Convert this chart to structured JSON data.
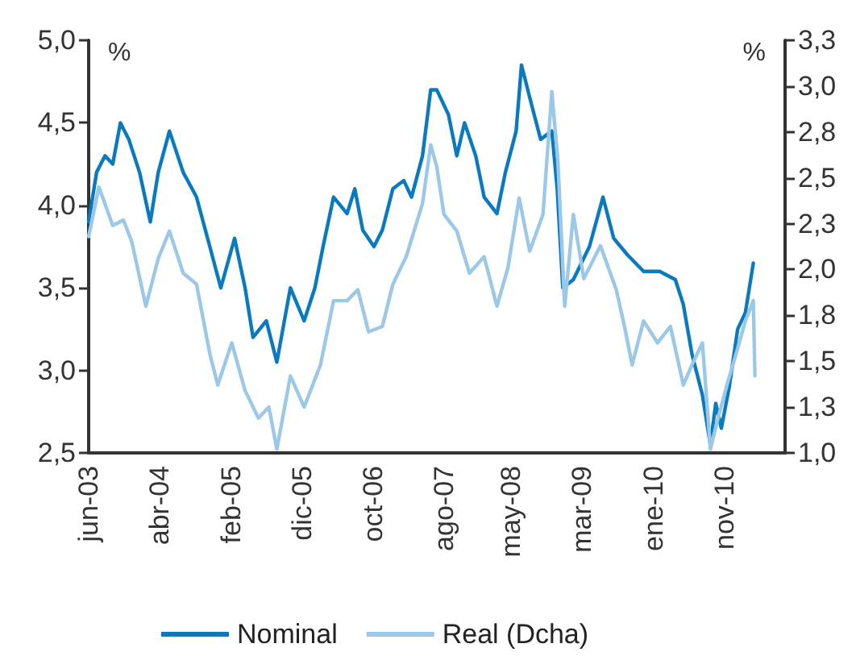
{
  "chart_data": {
    "type": "line",
    "ylabel": "%",
    "y2label": "%",
    "xlim": [
      "2003-06-01",
      "2011-08-01"
    ],
    "xticks": [
      {
        "value": "2003-06-01",
        "label": "jun-03"
      },
      {
        "value": "2004-04-01",
        "label": "abr-04"
      },
      {
        "value": "2005-02-01",
        "label": "feb-05"
      },
      {
        "value": "2005-12-01",
        "label": "dic-05"
      },
      {
        "value": "2006-10-01",
        "label": "oct-06"
      },
      {
        "value": "2007-08-01",
        "label": "ago-07"
      },
      {
        "value": "2008-05-15",
        "label": "may-08"
      },
      {
        "value": "2009-03-15",
        "label": "mar-09"
      },
      {
        "value": "2010-01-15",
        "label": "ene-10"
      },
      {
        "value": "2010-11-15",
        "label": "nov-10"
      }
    ],
    "ylim": [
      2.5,
      5.0
    ],
    "yticks": [
      {
        "value": 2.5,
        "label": "2,5"
      },
      {
        "value": 3.0,
        "label": "3,0"
      },
      {
        "value": 3.5,
        "label": "3,5"
      },
      {
        "value": 4.0,
        "label": "4,0"
      },
      {
        "value": 4.5,
        "label": "4,5"
      },
      {
        "value": 5.0,
        "label": "5,0"
      }
    ],
    "y2lim": [
      1.0,
      3.25
    ],
    "y2ticks": [
      {
        "value": 1.0,
        "label": "1,0"
      },
      {
        "value": 1.25,
        "label": "1,3"
      },
      {
        "value": 1.5,
        "label": "1,5"
      },
      {
        "value": 1.75,
        "label": "1,8"
      },
      {
        "value": 2.0,
        "label": "2,0"
      },
      {
        "value": 2.25,
        "label": "2,3"
      },
      {
        "value": 2.5,
        "label": "2,5"
      },
      {
        "value": 2.75,
        "label": "2,8"
      },
      {
        "value": 3.0,
        "label": "3,0"
      },
      {
        "value": 3.25,
        "label": "3,3"
      }
    ],
    "grid": false,
    "legend": "bottom",
    "marker": "none",
    "line_style": "solid",
    "series": [
      {
        "name": "Nominal",
        "color": "#0a7abf",
        "x": [
          "2003-06-01",
          "2003-07-05",
          "2003-08-10",
          "2003-09-12",
          "2003-10-15",
          "2003-11-20",
          "2004-01-05",
          "2004-02-20",
          "2004-03-25",
          "2004-05-12",
          "2004-07-10",
          "2004-09-05",
          "2004-11-01",
          "2004-12-18",
          "2005-02-15",
          "2005-04-01",
          "2005-05-05",
          "2005-07-01",
          "2005-08-15",
          "2005-10-12",
          "2005-12-10",
          "2006-01-25",
          "2006-03-01",
          "2006-04-15",
          "2006-06-12",
          "2006-07-15",
          "2006-08-18",
          "2006-10-05",
          "2006-11-10",
          "2006-12-25",
          "2007-02-10",
          "2007-03-15",
          "2007-05-01",
          "2007-06-05",
          "2007-07-01",
          "2007-08-20",
          "2007-09-25",
          "2007-10-28",
          "2007-12-15",
          "2008-01-20",
          "2008-03-15",
          "2008-04-20",
          "2008-06-05",
          "2008-06-28",
          "2008-08-12",
          "2008-09-18",
          "2008-11-05",
          "2008-11-28",
          "2008-12-22",
          "2009-02-05",
          "2009-04-15",
          "2009-06-12",
          "2009-07-28",
          "2009-09-25",
          "2009-12-03",
          "2010-02-10",
          "2010-04-18",
          "2010-05-22",
          "2010-06-28",
          "2010-08-12",
          "2010-09-15",
          "2010-10-08",
          "2010-11-01",
          "2010-12-05",
          "2011-01-10",
          "2011-02-12",
          "2011-03-18"
        ],
        "values": [
          3.9,
          4.2,
          4.3,
          4.25,
          4.5,
          4.4,
          4.2,
          3.9,
          4.2,
          4.45,
          4.2,
          4.05,
          3.75,
          3.5,
          3.8,
          3.5,
          3.2,
          3.3,
          3.05,
          3.5,
          3.3,
          3.5,
          3.75,
          4.05,
          3.95,
          4.1,
          3.85,
          3.75,
          3.85,
          4.1,
          4.15,
          4.05,
          4.3,
          4.7,
          4.7,
          4.55,
          4.3,
          4.5,
          4.3,
          4.05,
          3.95,
          4.2,
          4.45,
          4.85,
          4.6,
          4.4,
          4.45,
          4.1,
          3.5,
          3.55,
          3.75,
          4.05,
          3.8,
          3.7,
          3.6,
          3.6,
          3.55,
          3.4,
          3.1,
          2.85,
          2.55,
          2.8,
          2.65,
          2.9,
          3.25,
          3.35,
          3.65
        ]
      },
      {
        "name": "Real (Dcha)",
        "color": "#9cc8e8",
        "axis": "y2",
        "x": [
          "2003-06-01",
          "2003-07-15",
          "2003-09-12",
          "2003-10-28",
          "2003-12-03",
          "2004-02-01",
          "2004-03-25",
          "2004-05-12",
          "2004-07-10",
          "2004-09-05",
          "2004-11-01",
          "2004-12-05",
          "2005-02-03",
          "2005-04-01",
          "2005-05-28",
          "2005-07-12",
          "2005-08-15",
          "2005-10-12",
          "2005-12-10",
          "2006-02-18",
          "2006-04-15",
          "2006-06-12",
          "2006-07-28",
          "2006-09-12",
          "2006-11-10",
          "2006-12-25",
          "2007-02-20",
          "2007-05-01",
          "2007-06-05",
          "2007-07-01",
          "2007-08-01",
          "2007-09-25",
          "2007-11-18",
          "2008-01-20",
          "2008-03-15",
          "2008-05-01",
          "2008-06-18",
          "2008-08-02",
          "2008-09-28",
          "2008-11-05",
          "2008-12-01",
          "2008-12-30",
          "2009-02-05",
          "2009-03-22",
          "2009-06-01",
          "2009-08-08",
          "2009-09-12",
          "2009-10-15",
          "2009-12-03",
          "2010-02-01",
          "2010-03-28",
          "2010-05-22",
          "2010-06-28",
          "2010-08-12",
          "2010-09-15",
          "2010-10-18",
          "2010-11-25",
          "2011-01-10",
          "2011-02-12",
          "2011-03-18",
          "2011-03-25"
        ],
        "values": [
          2.18,
          2.45,
          2.24,
          2.27,
          2.15,
          1.8,
          2.06,
          2.21,
          1.98,
          1.92,
          1.54,
          1.37,
          1.6,
          1.34,
          1.19,
          1.25,
          1.02,
          1.42,
          1.25,
          1.48,
          1.83,
          1.83,
          1.89,
          1.66,
          1.69,
          1.92,
          2.07,
          2.36,
          2.68,
          2.56,
          2.3,
          2.21,
          1.98,
          2.07,
          1.8,
          2.01,
          2.39,
          2.1,
          2.3,
          2.97,
          2.59,
          1.8,
          2.3,
          1.95,
          2.13,
          1.89,
          1.69,
          1.48,
          1.72,
          1.6,
          1.69,
          1.37,
          1.48,
          1.6,
          1.02,
          1.19,
          1.37,
          1.57,
          1.72,
          1.83,
          1.42
        ]
      }
    ]
  }
}
